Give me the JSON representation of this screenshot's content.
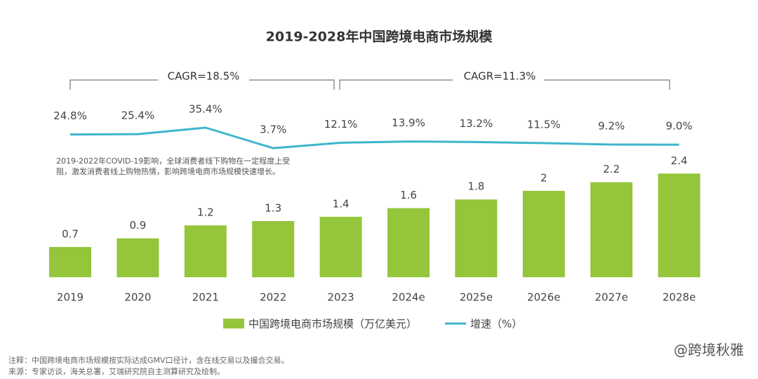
{
  "chart_data": {
    "type": "bar-line",
    "title": "2019-2028年中国跨境电商市场规模",
    "categories": [
      "2019",
      "2020",
      "2021",
      "2022",
      "2023",
      "2024e",
      "2025e",
      "2026e",
      "2027e",
      "2028e"
    ],
    "series": [
      {
        "name": "中国跨境电商市场规模（万亿美元）",
        "type": "bar",
        "color": "#94c53a",
        "values": [
          0.7,
          0.9,
          1.2,
          1.3,
          1.4,
          1.6,
          1.8,
          2.0,
          2.2,
          2.4
        ]
      },
      {
        "name": "增速（%）",
        "type": "line",
        "axis": "y2",
        "color": "#3db6cc",
        "values": [
          24.8,
          25.4,
          35.4,
          3.7,
          12.1,
          13.9,
          13.2,
          11.5,
          9.2,
          9.0
        ],
        "value_labels": [
          "24.8%",
          "25.4%",
          "35.4%",
          "3.7%",
          "12.1%",
          "13.9%",
          "13.2%",
          "11.5%",
          "9.2%",
          "9.0%"
        ]
      }
    ],
    "ylim": [
      0,
      2.6
    ],
    "y2lim": [
      -6,
      70
    ],
    "cagr_labels": [
      "CAGR=18.5%",
      "CAGR=11.3%"
    ],
    "annotation": "2019-2022年COVID-19影响，全球消费者线下购物在一定程度上受阻，激发消费者线上购物热情，影响跨境电商市场规模快速增长。",
    "notes": [
      "注释：中国跨境电商市场规模按实际达成GMV口径计，含在线交易以及撮合交易。",
      "来源：专家访谈，海关总署，艾瑞研究院自主测算研究及绘制。"
    ],
    "watermark": "@跨境秋雅"
  }
}
